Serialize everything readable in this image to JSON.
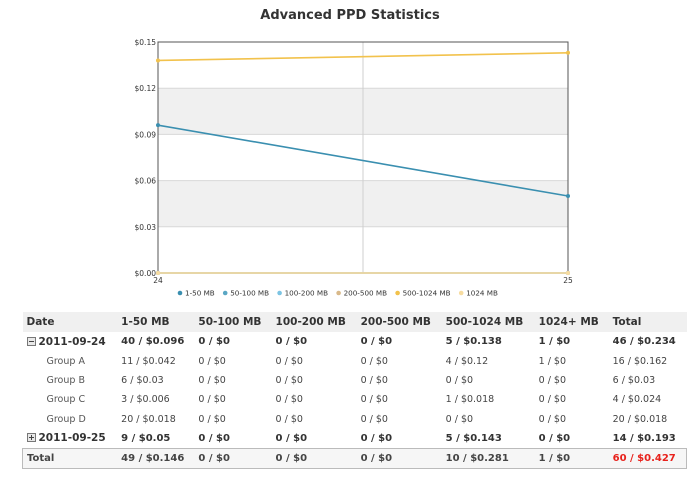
{
  "title": "Advanced PPD Statistics",
  "colors": {
    "accent": "#e8221c"
  },
  "chart_data": {
    "type": "line",
    "title": "Advanced PPD Statistics",
    "x": [
      "24",
      "25"
    ],
    "ylim": [
      0,
      0.15
    ],
    "yticks": [
      0,
      0.03,
      0.06,
      0.09,
      0.12,
      0.15
    ],
    "ytick_labels": [
      "$0.00",
      "$0.03",
      "$0.06",
      "$0.09",
      "$0.12",
      "$0.15"
    ],
    "grid": true,
    "legend_position": "bottom",
    "series": [
      {
        "name": "1-50 MB",
        "color": "#3a8fb0",
        "values": [
          0.096,
          0.05
        ]
      },
      {
        "name": "50-100 MB",
        "color": "#5aa7c4",
        "values": [
          0,
          0
        ]
      },
      {
        "name": "100-200 MB",
        "color": "#7cc4e3",
        "values": [
          0,
          0
        ]
      },
      {
        "name": "200-500 MB",
        "color": "#d9b98a",
        "values": [
          0,
          0
        ]
      },
      {
        "name": "500-1024 MB",
        "color": "#f2c24c",
        "values": [
          0.138,
          0.143
        ]
      },
      {
        "name": "1024  MB",
        "color": "#f7dca0",
        "values": [
          0,
          0
        ]
      }
    ]
  },
  "table": {
    "headers": [
      "Date",
      "1-50 MB",
      "50-100 MB",
      "100-200 MB",
      "200-500 MB",
      "500-1024 MB",
      "1024+ MB",
      "Total"
    ],
    "days": [
      {
        "date": "2011-09-24",
        "expanded": true,
        "cells": [
          "40 / $0.096",
          "0 / $0",
          "0 / $0",
          "0 / $0",
          "5 / $0.138",
          "1 / $0",
          "46 / $0.234"
        ],
        "groups": [
          {
            "name": "Group A",
            "cells": [
              "11 / $0.042",
              "0 / $0",
              "0 / $0",
              "0 / $0",
              "4 / $0.12",
              "1 / $0",
              "16 / $0.162"
            ]
          },
          {
            "name": "Group B",
            "cells": [
              "6 / $0.03",
              "0 / $0",
              "0 / $0",
              "0 / $0",
              "0 / $0",
              "0 / $0",
              "6 / $0.03"
            ]
          },
          {
            "name": "Group C",
            "cells": [
              "3 / $0.006",
              "0 / $0",
              "0 / $0",
              "0 / $0",
              "1 / $0.018",
              "0 / $0",
              "4 / $0.024"
            ]
          },
          {
            "name": "Group D",
            "cells": [
              "20 / $0.018",
              "0 / $0",
              "0 / $0",
              "0 / $0",
              "0 / $0",
              "0 / $0",
              "20 / $0.018"
            ]
          }
        ]
      },
      {
        "date": "2011-09-25",
        "expanded": false,
        "cells": [
          "9 / $0.05",
          "0 / $0",
          "0 / $0",
          "0 / $0",
          "5 / $0.143",
          "0 / $0",
          "14 / $0.193"
        ],
        "groups": []
      }
    ],
    "total": {
      "label": "Total",
      "cells": [
        "49 / $0.146",
        "0 / $0",
        "0 / $0",
        "0 / $0",
        "10 / $0.281",
        "1 / $0",
        "60 / $0.427"
      ]
    }
  }
}
